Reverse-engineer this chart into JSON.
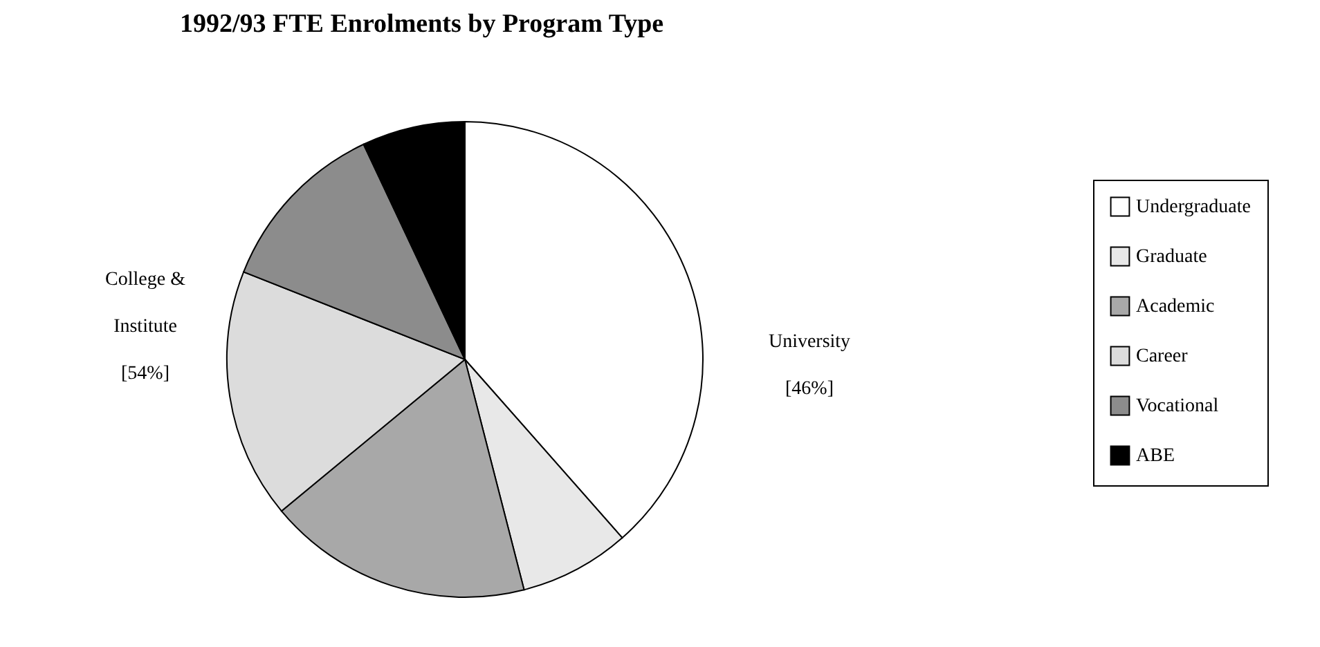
{
  "chart_data": {
    "type": "pie",
    "title": "1992/93 FTE Enrolments by Program Type",
    "categories": [
      "Undergraduate",
      "Graduate",
      "Academic",
      "Career",
      "Vocational",
      "ABE"
    ],
    "values": [
      38.5,
      7.5,
      18,
      17,
      12,
      7
    ],
    "colors": [
      "#ffffff",
      "#e8e8e8",
      "#a8a8a8",
      "#dcdcdc",
      "#8c8c8c",
      "#000000"
    ],
    "legend": "right",
    "annotations": [
      "College &\nInstitute\n[54%]",
      "University\n[46%]"
    ]
  }
}
